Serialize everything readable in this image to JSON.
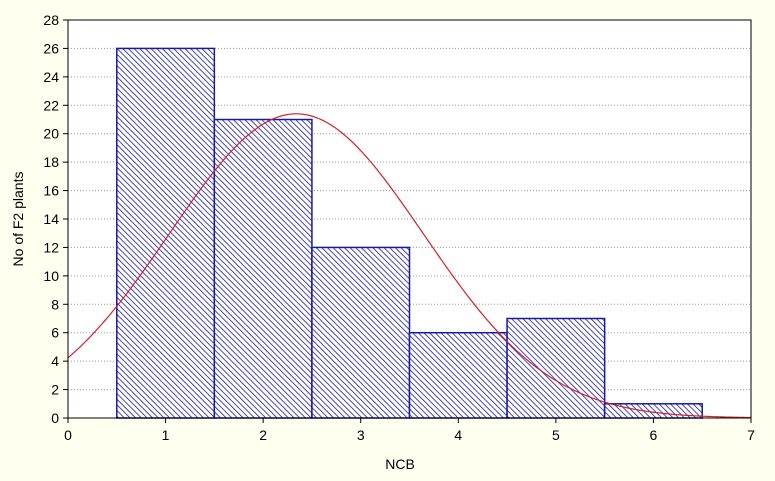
{
  "chart_data": {
    "type": "bar",
    "title": "",
    "xlabel": "NCB",
    "ylabel": "No of F2 plants",
    "xlim": [
      0,
      7
    ],
    "ylim": [
      0,
      28
    ],
    "x_ticks": [
      0,
      1,
      2,
      3,
      4,
      5,
      6,
      7
    ],
    "y_ticks": [
      0,
      2,
      4,
      6,
      8,
      10,
      12,
      14,
      16,
      18,
      20,
      22,
      24,
      26,
      28
    ],
    "grid": "horizontal dotted",
    "bins": [
      {
        "x0": 0.5,
        "x1": 1.5,
        "value": 26
      },
      {
        "x0": 1.5,
        "x1": 2.5,
        "value": 21
      },
      {
        "x0": 2.5,
        "x1": 3.5,
        "value": 12
      },
      {
        "x0": 3.5,
        "x1": 4.5,
        "value": 6
      },
      {
        "x0": 4.5,
        "x1": 5.5,
        "value": 7
      },
      {
        "x0": 5.5,
        "x1": 6.5,
        "value": 1
      }
    ],
    "fitted_curve": {
      "kind": "normal",
      "mean": 2.34,
      "sd": 1.3,
      "peak_count": 21.4,
      "range": [
        0,
        7
      ]
    },
    "colors": {
      "background": "#fffff0",
      "bar_stroke": "#1a1aa0",
      "bar_hatch": "#1a1aa0",
      "curve": "#d0202a",
      "grid": "#9a9a9a",
      "axis": "#000000"
    }
  }
}
